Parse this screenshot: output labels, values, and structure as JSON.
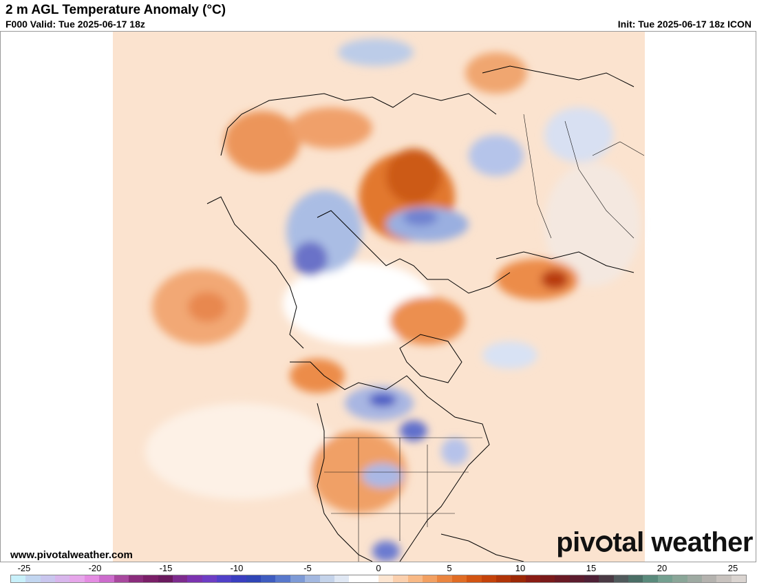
{
  "header": {
    "title": "2 m AGL Temperature Anomaly (°C)",
    "valid": "F000 Valid: Tue 2025-06-17 18z",
    "init": "Init: Tue 2025-06-17 18z ICON"
  },
  "footer": {
    "website": "www.pivotalweather.com",
    "brand_left": "piv",
    "brand_right": "tal weather"
  },
  "colorbar": {
    "labels": [
      "-25",
      "-20",
      "-15",
      "-10",
      "-5",
      "0",
      "5",
      "10",
      "15",
      "20",
      "25"
    ],
    "colors": [
      "#c8f0fa",
      "#c2d6f0",
      "#c9c6ee",
      "#d8b6ec",
      "#e6a6ea",
      "#e48ce2",
      "#cc6ccc",
      "#a8489e",
      "#8a2c7c",
      "#7a1f68",
      "#6a1a5e",
      "#7d2b8e",
      "#7b33b0",
      "#6d3dc4",
      "#5040c8",
      "#3a3ec0",
      "#2f45b6",
      "#3e5cc0",
      "#5878cc",
      "#7d9ad6",
      "#a3b8e0",
      "#c4d3ea",
      "#e0e8f4",
      "#ffffff",
      "#ffffff",
      "#fde6d2",
      "#fbd0ae",
      "#f8b986",
      "#f2a062",
      "#ea8540",
      "#e06c24",
      "#d25412",
      "#c4420a",
      "#b03408",
      "#9c2806",
      "#8a1c14",
      "#7a1a1a",
      "#6a1a24",
      "#5c1c2e",
      "#4e2036",
      "#4a3a44",
      "#505a5c",
      "#4a6e66",
      "#5a8a7c",
      "#74a090",
      "#8aa698",
      "#9eaaa2",
      "#b4b2ae",
      "#c8c2be",
      "#dad4d0"
    ]
  }
}
